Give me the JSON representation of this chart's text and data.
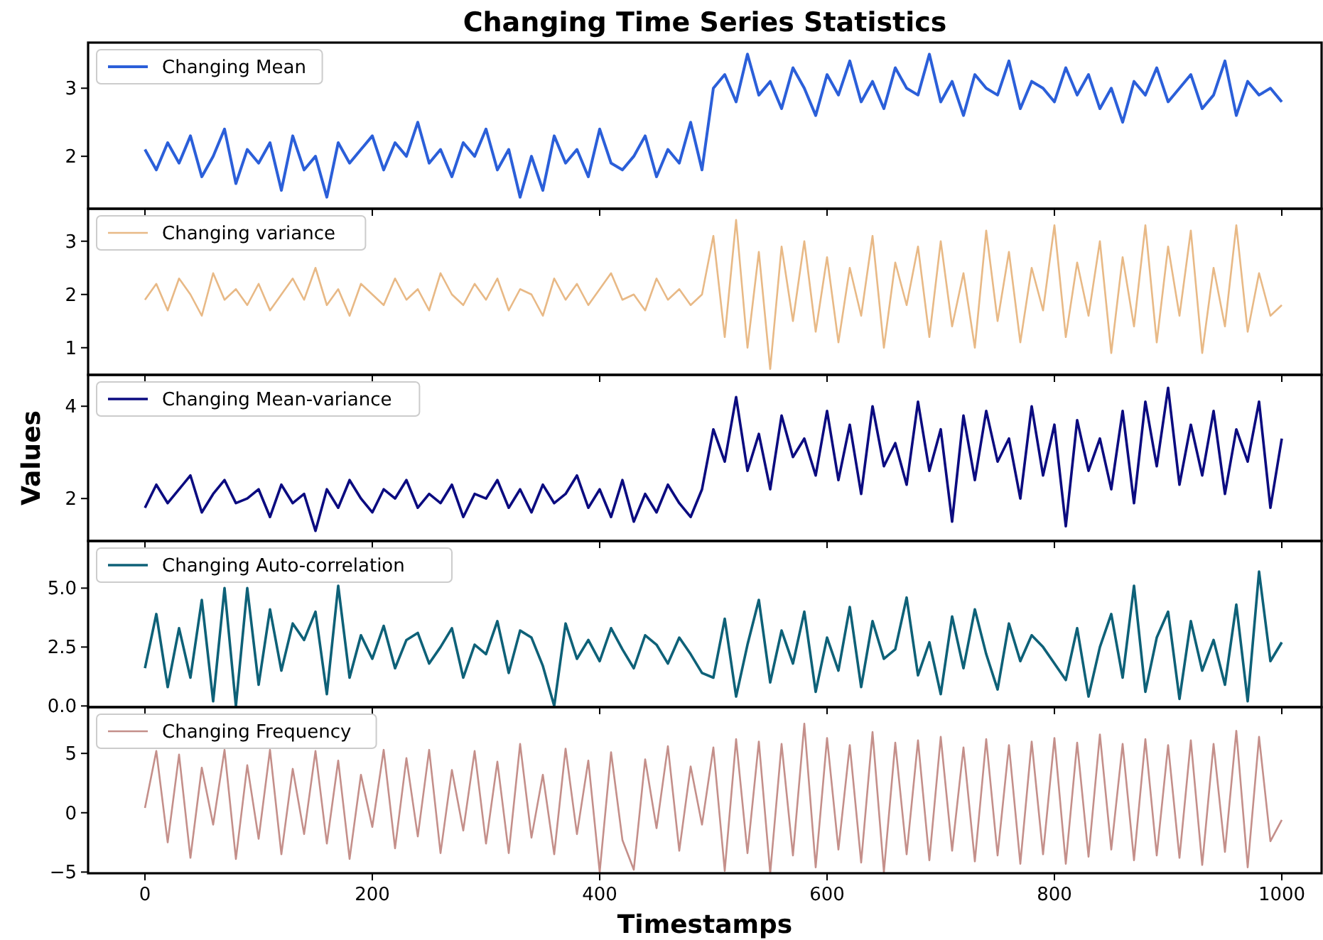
{
  "chart_data": [
    {
      "type": "line",
      "title": "Changing Time Series Statistics",
      "x": [
        0,
        10,
        20,
        30,
        40,
        50,
        60,
        70,
        80,
        90,
        100,
        110,
        120,
        130,
        140,
        150,
        160,
        170,
        180,
        190,
        200,
        210,
        220,
        230,
        240,
        250,
        260,
        270,
        280,
        290,
        300,
        310,
        320,
        330,
        340,
        350,
        360,
        370,
        380,
        390,
        400,
        410,
        420,
        430,
        440,
        450,
        460,
        470,
        480,
        490,
        500,
        510,
        520,
        530,
        540,
        550,
        560,
        570,
        580,
        590,
        600,
        610,
        620,
        630,
        640,
        650,
        660,
        670,
        680,
        690,
        700,
        710,
        720,
        730,
        740,
        750,
        760,
        770,
        780,
        790,
        800,
        810,
        820,
        830,
        840,
        850,
        860,
        870,
        880,
        890,
        900,
        910,
        920,
        930,
        940,
        950,
        960,
        970,
        980,
        990,
        1000
      ],
      "xlim": [
        -50,
        1035
      ],
      "xticks": [
        0,
        200,
        400,
        600,
        800,
        1000
      ],
      "ylim": [
        1.23,
        3.67
      ],
      "yticks": [
        2,
        3
      ],
      "grid": false,
      "legend": "top left",
      "tick_labels": "y",
      "series": [
        {
          "name": "Changing Mean",
          "color": "#2b5fd9",
          "values": [
            2.1,
            1.8,
            2.2,
            1.9,
            2.3,
            1.7,
            2.0,
            2.4,
            1.6,
            2.1,
            1.9,
            2.2,
            1.5,
            2.3,
            1.8,
            2.0,
            1.4,
            2.2,
            1.9,
            2.1,
            2.3,
            1.8,
            2.2,
            2.0,
            2.5,
            1.9,
            2.1,
            1.7,
            2.2,
            2.0,
            2.4,
            1.8,
            2.1,
            1.4,
            2.0,
            1.5,
            2.3,
            1.9,
            2.1,
            1.7,
            2.4,
            1.9,
            1.8,
            2.0,
            2.3,
            1.7,
            2.1,
            1.9,
            2.5,
            1.8,
            3.0,
            3.2,
            2.8,
            3.5,
            2.9,
            3.1,
            2.7,
            3.3,
            3.0,
            2.6,
            3.2,
            2.9,
            3.4,
            2.8,
            3.1,
            2.7,
            3.3,
            3.0,
            2.9,
            3.5,
            2.8,
            3.1,
            2.6,
            3.2,
            3.0,
            2.9,
            3.4,
            2.7,
            3.1,
            3.0,
            2.8,
            3.3,
            2.9,
            3.2,
            2.7,
            3.0,
            2.5,
            3.1,
            2.9,
            3.3,
            2.8,
            3.0,
            3.2,
            2.7,
            2.9,
            3.4,
            2.6,
            3.1,
            2.9,
            3.0,
            2.8
          ]
        }
      ]
    },
    {
      "type": "line",
      "x": [
        0,
        10,
        20,
        30,
        40,
        50,
        60,
        70,
        80,
        90,
        100,
        110,
        120,
        130,
        140,
        150,
        160,
        170,
        180,
        190,
        200,
        210,
        220,
        230,
        240,
        250,
        260,
        270,
        280,
        290,
        300,
        310,
        320,
        330,
        340,
        350,
        360,
        370,
        380,
        390,
        400,
        410,
        420,
        430,
        440,
        450,
        460,
        470,
        480,
        490,
        500,
        510,
        520,
        530,
        540,
        550,
        560,
        570,
        580,
        590,
        600,
        610,
        620,
        630,
        640,
        650,
        660,
        670,
        680,
        690,
        700,
        710,
        720,
        730,
        740,
        750,
        760,
        770,
        780,
        790,
        800,
        810,
        820,
        830,
        840,
        850,
        860,
        870,
        880,
        890,
        900,
        910,
        920,
        930,
        940,
        950,
        960,
        970,
        980,
        990,
        1000
      ],
      "xlim": [
        -50,
        1035
      ],
      "xticks": [
        0,
        200,
        400,
        600,
        800,
        1000
      ],
      "ylim": [
        0.49,
        3.61
      ],
      "yticks": [
        1,
        2,
        3
      ],
      "grid": false,
      "legend": "top left",
      "tick_labels": "y",
      "series": [
        {
          "name": "Changing variance",
          "color": "#e8b986",
          "values": [
            1.9,
            2.2,
            1.7,
            2.3,
            2.0,
            1.6,
            2.4,
            1.9,
            2.1,
            1.8,
            2.2,
            1.7,
            2.0,
            2.3,
            1.9,
            2.5,
            1.8,
            2.1,
            1.6,
            2.2,
            2.0,
            1.8,
            2.3,
            1.9,
            2.1,
            1.7,
            2.4,
            2.0,
            1.8,
            2.2,
            1.9,
            2.3,
            1.7,
            2.1,
            2.0,
            1.6,
            2.3,
            1.9,
            2.2,
            1.8,
            2.1,
            2.4,
            1.9,
            2.0,
            1.7,
            2.3,
            1.9,
            2.1,
            1.8,
            2.0,
            3.1,
            1.2,
            3.4,
            1.0,
            2.8,
            0.6,
            2.9,
            1.5,
            3.0,
            1.3,
            2.7,
            1.1,
            2.5,
            1.6,
            3.1,
            1.0,
            2.6,
            1.8,
            2.9,
            1.2,
            3.0,
            1.4,
            2.4,
            1.0,
            3.2,
            1.5,
            2.8,
            1.1,
            2.5,
            1.7,
            3.3,
            1.2,
            2.6,
            1.6,
            3.0,
            0.9,
            2.7,
            1.4,
            3.3,
            1.1,
            2.9,
            1.6,
            3.2,
            0.9,
            2.5,
            1.4,
            3.3,
            1.3,
            2.4,
            1.6,
            1.8
          ]
        }
      ]
    },
    {
      "type": "line",
      "ylabel": "Values",
      "x": [
        0,
        10,
        20,
        30,
        40,
        50,
        60,
        70,
        80,
        90,
        100,
        110,
        120,
        130,
        140,
        150,
        160,
        170,
        180,
        190,
        200,
        210,
        220,
        230,
        240,
        250,
        260,
        270,
        280,
        290,
        300,
        310,
        320,
        330,
        340,
        350,
        360,
        370,
        380,
        390,
        400,
        410,
        420,
        430,
        440,
        450,
        460,
        470,
        480,
        490,
        500,
        510,
        520,
        530,
        540,
        550,
        560,
        570,
        580,
        590,
        600,
        610,
        620,
        630,
        640,
        650,
        660,
        670,
        680,
        690,
        700,
        710,
        720,
        730,
        740,
        750,
        760,
        770,
        780,
        790,
        800,
        810,
        820,
        830,
        840,
        850,
        860,
        870,
        880,
        890,
        900,
        910,
        920,
        930,
        940,
        950,
        960,
        970,
        980,
        990,
        1000
      ],
      "xlim": [
        -50,
        1035
      ],
      "xticks": [
        0,
        200,
        400,
        600,
        800,
        1000
      ],
      "ylim": [
        1.08,
        4.68
      ],
      "yticks": [
        2,
        4
      ],
      "grid": false,
      "legend": "top left",
      "tick_labels": "y",
      "series": [
        {
          "name": "Changing Mean-variance",
          "color": "#0b0b80",
          "values": [
            1.8,
            2.3,
            1.9,
            2.2,
            2.5,
            1.7,
            2.1,
            2.4,
            1.9,
            2.0,
            2.2,
            1.6,
            2.3,
            1.9,
            2.1,
            1.3,
            2.2,
            1.8,
            2.4,
            2.0,
            1.7,
            2.2,
            2.0,
            2.4,
            1.8,
            2.1,
            1.9,
            2.3,
            1.6,
            2.1,
            2.0,
            2.4,
            1.8,
            2.2,
            1.7,
            2.3,
            1.9,
            2.1,
            2.5,
            1.8,
            2.2,
            1.6,
            2.4,
            1.5,
            2.1,
            1.7,
            2.3,
            1.9,
            1.6,
            2.2,
            3.5,
            2.8,
            4.2,
            2.6,
            3.4,
            2.2,
            3.8,
            2.9,
            3.3,
            2.5,
            3.9,
            2.4,
            3.6,
            2.1,
            4.0,
            2.7,
            3.2,
            2.3,
            4.1,
            2.6,
            3.5,
            1.5,
            3.8,
            2.4,
            3.9,
            2.8,
            3.3,
            2.0,
            4.0,
            2.5,
            3.6,
            1.4,
            3.7,
            2.6,
            3.3,
            2.2,
            3.9,
            1.9,
            4.1,
            2.7,
            4.4,
            2.3,
            3.6,
            2.5,
            3.9,
            2.1,
            3.5,
            2.8,
            4.1,
            1.8,
            3.3
          ]
        }
      ]
    },
    {
      "type": "line",
      "x": [
        0,
        10,
        20,
        30,
        40,
        50,
        60,
        70,
        80,
        90,
        100,
        110,
        120,
        130,
        140,
        150,
        160,
        170,
        180,
        190,
        200,
        210,
        220,
        230,
        240,
        250,
        260,
        270,
        280,
        290,
        300,
        310,
        320,
        330,
        340,
        350,
        360,
        370,
        380,
        390,
        400,
        410,
        420,
        430,
        440,
        450,
        460,
        470,
        480,
        490,
        500,
        510,
        520,
        530,
        540,
        550,
        560,
        570,
        580,
        590,
        600,
        610,
        620,
        630,
        640,
        650,
        660,
        670,
        680,
        690,
        700,
        710,
        720,
        730,
        740,
        750,
        760,
        770,
        780,
        790,
        800,
        810,
        820,
        830,
        840,
        850,
        860,
        870,
        880,
        890,
        900,
        910,
        920,
        930,
        940,
        950,
        960,
        970,
        980,
        990,
        1000
      ],
      "xlim": [
        -50,
        1035
      ],
      "xticks": [
        0,
        200,
        400,
        600,
        800,
        1000
      ],
      "ylim": [
        -0.05,
        7.0
      ],
      "yticks": [
        {
          "value": 0,
          "label": "0.0"
        },
        {
          "value": 2.5,
          "label": "2.5"
        },
        {
          "value": 5,
          "label": "5.0"
        }
      ],
      "grid": false,
      "legend": "top left",
      "tick_labels": "y",
      "series": [
        {
          "name": "Changing Auto-correlation",
          "color": "#0e6178",
          "values": [
            1.6,
            3.9,
            0.8,
            3.3,
            1.2,
            4.5,
            0.2,
            5.0,
            0.0,
            5.0,
            0.9,
            4.1,
            1.5,
            3.5,
            2.8,
            4.0,
            0.5,
            5.1,
            1.2,
            3.0,
            2.0,
            3.4,
            1.6,
            2.8,
            3.1,
            1.8,
            2.5,
            3.3,
            1.2,
            2.6,
            2.2,
            3.6,
            1.4,
            3.2,
            2.9,
            1.7,
            0.0,
            3.5,
            2.0,
            2.8,
            1.9,
            3.3,
            2.4,
            1.6,
            3.0,
            2.6,
            1.8,
            2.9,
            2.2,
            1.4,
            1.2,
            3.7,
            0.4,
            2.6,
            4.5,
            1.0,
            3.2,
            1.8,
            4.0,
            0.6,
            2.9,
            1.5,
            4.2,
            0.8,
            3.6,
            2.0,
            2.4,
            4.6,
            1.3,
            2.7,
            0.5,
            3.8,
            1.6,
            4.1,
            2.2,
            0.7,
            3.5,
            1.9,
            3.0,
            2.5,
            1.8,
            1.1,
            3.3,
            0.4,
            2.5,
            3.9,
            1.2,
            5.1,
            0.6,
            2.9,
            4.0,
            0.3,
            3.6,
            1.5,
            2.8,
            0.9,
            4.3,
            0.2,
            5.7,
            1.9,
            2.7
          ]
        }
      ]
    },
    {
      "type": "line",
      "xlabel": "Timestamps",
      "x": [
        0,
        10,
        20,
        30,
        40,
        50,
        60,
        70,
        80,
        90,
        100,
        110,
        120,
        130,
        140,
        150,
        160,
        170,
        180,
        190,
        200,
        210,
        220,
        230,
        240,
        250,
        260,
        270,
        280,
        290,
        300,
        310,
        320,
        330,
        340,
        350,
        360,
        370,
        380,
        390,
        400,
        410,
        420,
        430,
        440,
        450,
        460,
        470,
        480,
        490,
        500,
        510,
        520,
        530,
        540,
        550,
        560,
        570,
        580,
        590,
        600,
        610,
        620,
        630,
        640,
        650,
        660,
        670,
        680,
        690,
        700,
        710,
        720,
        730,
        740,
        750,
        760,
        770,
        780,
        790,
        800,
        810,
        820,
        830,
        840,
        850,
        860,
        870,
        880,
        890,
        900,
        910,
        920,
        930,
        940,
        950,
        960,
        970,
        980,
        990,
        1000
      ],
      "xlim": [
        -50,
        1035
      ],
      "xticks": [
        0,
        200,
        400,
        600,
        800,
        1000
      ],
      "ylim": [
        -5.1,
        8.9
      ],
      "yticks": [
        {
          "value": -5,
          "label": "−5"
        },
        0,
        5
      ],
      "grid": false,
      "legend": "top left",
      "series": [
        {
          "name": "Changing Frequency",
          "color": "#c48f8a",
          "values": [
            0.4,
            5.2,
            -2.5,
            4.9,
            -3.8,
            3.8,
            -1.0,
            5.3,
            -3.9,
            4.0,
            -2.2,
            5.3,
            -3.5,
            3.7,
            -1.8,
            5.2,
            -2.6,
            4.4,
            -3.9,
            3.2,
            -1.2,
            5.3,
            -3.0,
            4.6,
            -2.0,
            5.3,
            -3.4,
            3.6,
            -1.5,
            5.2,
            -2.6,
            4.3,
            -3.4,
            5.8,
            -2.1,
            3.2,
            -3.5,
            5.4,
            -1.8,
            4.4,
            -5.0,
            5.1,
            -2.3,
            -4.8,
            4.5,
            -1.3,
            5.6,
            -3.2,
            3.9,
            -1.0,
            5.5,
            -4.9,
            6.2,
            -3.4,
            6.0,
            -5.1,
            5.8,
            -3.6,
            7.5,
            -4.6,
            6.3,
            -3.1,
            5.7,
            -4.2,
            6.8,
            -5.0,
            5.9,
            -3.5,
            6.1,
            -4.0,
            6.4,
            -3.2,
            5.5,
            -4.1,
            6.2,
            -3.6,
            5.7,
            -4.3,
            6.0,
            -3.5,
            6.3,
            -4.3,
            5.9,
            -3.7,
            6.6,
            -3.1,
            5.8,
            -4.0,
            6.2,
            -3.6,
            5.7,
            -3.8,
            6.1,
            -4.4,
            5.8,
            -3.3,
            6.9,
            -4.6,
            6.4,
            -2.4,
            -0.6
          ]
        }
      ]
    }
  ]
}
